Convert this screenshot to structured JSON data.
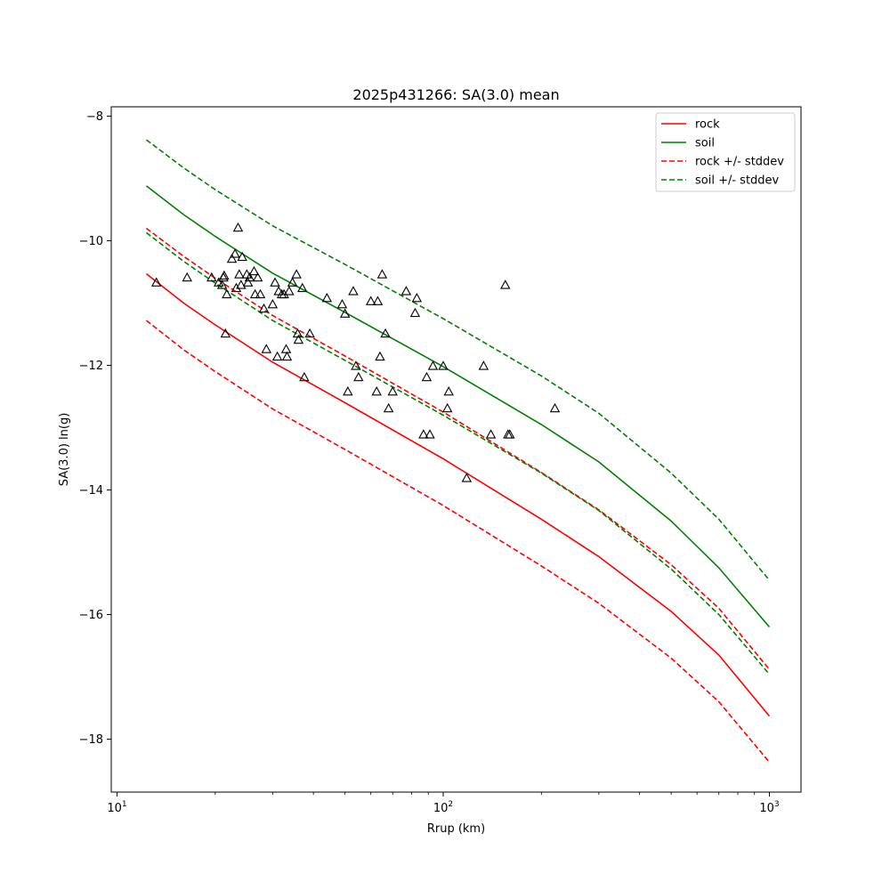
{
  "chart_data": {
    "type": "line",
    "title": "2025p431266: SA(3.0) mean",
    "xlabel": "Rrup (km)",
    "ylabel": "SA(3.0) ln(g)",
    "xscale": "log",
    "xlim": [
      9.6,
      1250
    ],
    "ylim": [
      -18.85,
      -7.85
    ],
    "grid": false,
    "legend_position": "top-right",
    "x_ticks": [
      {
        "value": 10,
        "base": "10",
        "exp": "1"
      },
      {
        "value": 100,
        "base": "10",
        "exp": "2"
      },
      {
        "value": 1000,
        "base": "10",
        "exp": "3"
      }
    ],
    "y_ticks": [
      {
        "value": -8,
        "label": "−8"
      },
      {
        "value": -10,
        "label": "−10"
      },
      {
        "value": -12,
        "label": "−12"
      },
      {
        "value": -14,
        "label": "−14"
      },
      {
        "value": -16,
        "label": "−16"
      },
      {
        "value": -18,
        "label": "−18"
      }
    ],
    "series": [
      {
        "name": "rock",
        "color": "#ff0000",
        "style": "solid",
        "x": [
          12.3,
          16,
          20,
          30,
          50,
          100,
          200,
          300,
          500,
          700,
          1000
        ],
        "y": [
          -10.53,
          -11.0,
          -11.35,
          -11.95,
          -12.6,
          -13.5,
          -14.47,
          -15.07,
          -15.95,
          -16.65,
          -17.63
        ]
      },
      {
        "name": "soil",
        "color": "#008000",
        "style": "solid",
        "x": [
          12.3,
          16,
          20,
          30,
          50,
          100,
          200,
          300,
          500,
          700,
          1000
        ],
        "y": [
          -9.12,
          -9.58,
          -9.93,
          -10.52,
          -11.15,
          -12.02,
          -12.95,
          -13.55,
          -14.5,
          -15.25,
          -16.2
        ]
      },
      {
        "name": "rock +/- stddev",
        "color": "#ff0000",
        "style": "dashed",
        "x": [
          12.3,
          16,
          20,
          30,
          50,
          100,
          200,
          300,
          500,
          700,
          1000
        ],
        "y": [
          -9.8,
          -10.25,
          -10.6,
          -11.2,
          -11.85,
          -12.75,
          -13.72,
          -14.32,
          -15.2,
          -15.9,
          -16.88
        ]
      },
      {
        "name": "",
        "color": "#ff0000",
        "style": "dashed",
        "x": [
          12.3,
          16,
          20,
          30,
          50,
          100,
          200,
          300,
          500,
          700,
          1000
        ],
        "y": [
          -11.28,
          -11.75,
          -12.1,
          -12.7,
          -13.35,
          -14.25,
          -15.22,
          -15.82,
          -16.7,
          -17.4,
          -18.37
        ]
      },
      {
        "name": "soil +/- stddev",
        "color": "#008000",
        "style": "dashed",
        "x": [
          12.3,
          16,
          20,
          30,
          50,
          100,
          200,
          300,
          500,
          700,
          1000
        ],
        "y": [
          -8.38,
          -8.83,
          -9.18,
          -9.76,
          -10.38,
          -11.25,
          -12.17,
          -12.77,
          -13.73,
          -14.47,
          -15.45
        ]
      },
      {
        "name": "",
        "color": "#008000",
        "style": "dashed",
        "x": [
          12.3,
          16,
          20,
          30,
          50,
          100,
          200,
          300,
          500,
          700,
          1000
        ],
        "y": [
          -9.87,
          -10.33,
          -10.68,
          -11.28,
          -11.92,
          -12.8,
          -13.73,
          -14.33,
          -15.27,
          -16.0,
          -16.96
        ]
      }
    ],
    "observations": {
      "marker": "open-triangle",
      "color": "#000000",
      "points": [
        [
          13.2,
          -10.68
        ],
        [
          16.4,
          -10.6
        ],
        [
          19.5,
          -10.6
        ],
        [
          20.5,
          -10.68
        ],
        [
          21,
          -10.72
        ],
        [
          21.2,
          -10.6
        ],
        [
          21.3,
          -10.57
        ],
        [
          21.5,
          -11.5
        ],
        [
          21.7,
          -10.87
        ],
        [
          22.5,
          -10.3
        ],
        [
          23,
          -10.22
        ],
        [
          23.2,
          -10.77
        ],
        [
          23.5,
          -9.8
        ],
        [
          23.7,
          -10.55
        ],
        [
          24,
          -10.72
        ],
        [
          24.2,
          -10.27
        ],
        [
          25,
          -10.55
        ],
        [
          25.2,
          -10.68
        ],
        [
          25.5,
          -10.6
        ],
        [
          26.3,
          -10.5
        ],
        [
          26.5,
          -10.87
        ],
        [
          27,
          -10.6
        ],
        [
          27.5,
          -10.87
        ],
        [
          28.2,
          -11.1
        ],
        [
          28.7,
          -11.75
        ],
        [
          30,
          -11.03
        ],
        [
          30.5,
          -10.68
        ],
        [
          31,
          -11.87
        ],
        [
          31.3,
          -10.82
        ],
        [
          32,
          -10.87
        ],
        [
          32.5,
          -10.87
        ],
        [
          33,
          -11.75
        ],
        [
          33.2,
          -11.87
        ],
        [
          33.7,
          -10.82
        ],
        [
          34.5,
          -10.68
        ],
        [
          35.5,
          -10.55
        ],
        [
          35.8,
          -11.5
        ],
        [
          36,
          -11.6
        ],
        [
          37,
          -10.77
        ],
        [
          37.5,
          -12.2
        ],
        [
          39,
          -11.5
        ],
        [
          44,
          -10.93
        ],
        [
          49,
          -11.03
        ],
        [
          50,
          -11.18
        ],
        [
          51,
          -12.43
        ],
        [
          53,
          -10.82
        ],
        [
          54,
          -12.02
        ],
        [
          55,
          -12.2
        ],
        [
          60,
          -10.98
        ],
        [
          62.5,
          -12.43
        ],
        [
          63,
          -10.98
        ],
        [
          64,
          -11.87
        ],
        [
          65,
          -10.55
        ],
        [
          66.5,
          -11.5
        ],
        [
          68,
          -12.7
        ],
        [
          70,
          -12.43
        ],
        [
          77,
          -10.82
        ],
        [
          82,
          -11.17
        ],
        [
          83,
          -10.93
        ],
        [
          87,
          -13.12
        ],
        [
          89,
          -12.2
        ],
        [
          91,
          -13.12
        ],
        [
          93,
          -12.02
        ],
        [
          100,
          -12.02
        ],
        [
          103,
          -12.7
        ],
        [
          104,
          -12.43
        ],
        [
          118,
          -13.82
        ],
        [
          133,
          -12.02
        ],
        [
          140,
          -13.12
        ],
        [
          155,
          -10.72
        ],
        [
          158,
          -13.12
        ],
        [
          160,
          -13.12
        ],
        [
          220,
          -12.7
        ]
      ]
    }
  }
}
